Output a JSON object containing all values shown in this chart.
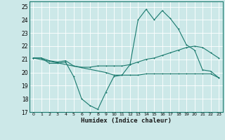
{
  "xlabel": "Humidex (Indice chaleur)",
  "ylabel": "",
  "background_color": "#cce8e8",
  "grid_color": "#ffffff",
  "line_color": "#1a7a6e",
  "xlim": [
    -0.5,
    23.5
  ],
  "ylim": [
    17,
    25.4
  ],
  "yticks": [
    17,
    18,
    19,
    20,
    21,
    22,
    23,
    24,
    25
  ],
  "xticks": [
    0,
    1,
    2,
    3,
    4,
    5,
    6,
    7,
    8,
    9,
    10,
    11,
    12,
    13,
    14,
    15,
    16,
    17,
    18,
    19,
    20,
    21,
    22,
    23
  ],
  "line1_x": [
    0,
    1,
    2,
    3,
    4,
    5,
    6,
    7,
    8,
    9,
    10,
    11,
    12,
    13,
    14,
    15,
    16,
    17,
    18,
    19,
    20,
    21,
    22,
    23
  ],
  "line1_y": [
    21.1,
    21.1,
    20.7,
    20.7,
    20.8,
    19.7,
    18.0,
    17.5,
    17.2,
    18.5,
    19.7,
    19.8,
    20.6,
    24.0,
    24.8,
    24.0,
    24.7,
    24.1,
    23.3,
    22.1,
    21.7,
    20.2,
    20.1,
    19.6
  ],
  "line2_x": [
    0,
    1,
    2,
    3,
    4,
    5,
    6,
    7,
    8,
    9,
    10,
    11,
    12,
    13,
    14,
    15,
    16,
    17,
    18,
    19,
    20,
    21,
    22,
    23
  ],
  "line2_y": [
    21.1,
    21.1,
    20.9,
    20.8,
    20.9,
    20.5,
    20.4,
    20.4,
    20.5,
    20.5,
    20.5,
    20.5,
    20.6,
    20.8,
    21.0,
    21.1,
    21.3,
    21.5,
    21.7,
    21.9,
    22.0,
    21.9,
    21.5,
    21.1
  ],
  "line3_x": [
    0,
    9,
    10,
    11,
    12,
    13,
    14,
    15,
    16,
    17,
    18,
    19,
    20,
    21,
    22,
    23
  ],
  "line3_y": [
    21.1,
    20.0,
    19.8,
    19.8,
    19.8,
    19.8,
    19.9,
    19.9,
    19.9,
    19.9,
    19.9,
    19.9,
    19.9,
    19.9,
    19.9,
    19.6
  ]
}
